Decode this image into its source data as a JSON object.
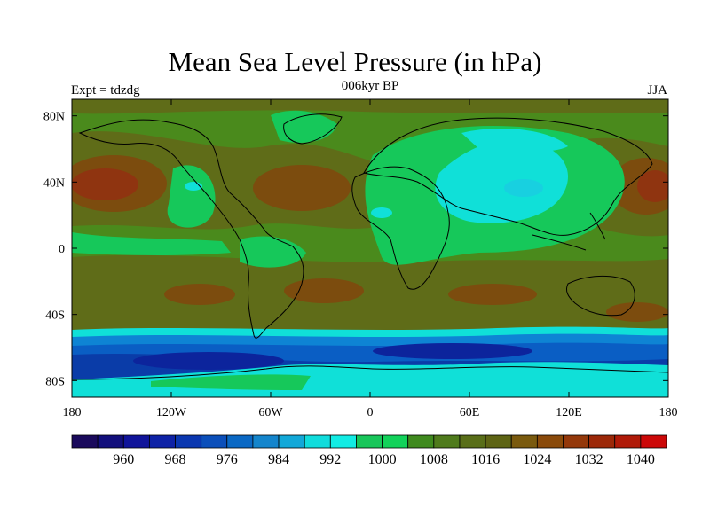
{
  "title": "Mean Sea Level Pressure (in hPa)",
  "subtitle_left": "Expt = tdzdg",
  "subtitle_center": "006kyr BP",
  "subtitle_right": "JJA",
  "map": {
    "projection": "cylindrical-equidistant",
    "lon_range": [
      -180,
      180
    ],
    "lat_range": [
      -90,
      90
    ],
    "lat_ticks": [
      {
        "value": 80,
        "label": "80N"
      },
      {
        "value": 40,
        "label": "40N"
      },
      {
        "value": 0,
        "label": "0"
      },
      {
        "value": -40,
        "label": "40S"
      },
      {
        "value": -80,
        "label": "80S"
      }
    ],
    "lon_ticks": [
      {
        "value": -180,
        "label": "180"
      },
      {
        "value": -120,
        "label": "120W"
      },
      {
        "value": -60,
        "label": "60W"
      },
      {
        "value": 0,
        "label": "0"
      },
      {
        "value": 60,
        "label": "60E"
      },
      {
        "value": 120,
        "label": "120E"
      },
      {
        "value": 180,
        "label": "180"
      }
    ]
  },
  "colorbar": {
    "colors": [
      "#1a0a5c",
      "#120f7c",
      "#10149a",
      "#0e22a6",
      "#0a37b0",
      "#0b4fba",
      "#0a68c4",
      "#1485cc",
      "#12a8d8",
      "#10dcdc",
      "#12ece4",
      "#18c65a",
      "#12d25a",
      "#3f8a1e",
      "#4f7b1c",
      "#596e18",
      "#5e6414",
      "#7a5a0e",
      "#8a4a0a",
      "#94380a",
      "#9c2808",
      "#b01a08",
      "#cc0808"
    ],
    "labels": [
      {
        "after_box": 1,
        "text": "960"
      },
      {
        "after_box": 3,
        "text": "968"
      },
      {
        "after_box": 5,
        "text": "976"
      },
      {
        "after_box": 7,
        "text": "984"
      },
      {
        "after_box": 9,
        "text": "992"
      },
      {
        "after_box": 11,
        "text": "1000"
      },
      {
        "after_box": 13,
        "text": "1008"
      },
      {
        "after_box": 15,
        "text": "1016"
      },
      {
        "after_box": 17,
        "text": "1024"
      },
      {
        "after_box": 19,
        "text": "1032"
      },
      {
        "after_box": 21,
        "text": "1040"
      }
    ]
  },
  "colors": {
    "bg_green": "#4a8a1c",
    "olive": "#5f6c18",
    "brown": "#7c4c0e",
    "darkred": "#8f3410",
    "bright_green": "#16c85a",
    "cyan": "#10e0d8",
    "light_cyan": "#18d0e0",
    "mid_blue": "#0e84d4",
    "blue": "#0a5ec4",
    "dark_blue": "#0a3ca8",
    "navy": "#0c249c"
  }
}
